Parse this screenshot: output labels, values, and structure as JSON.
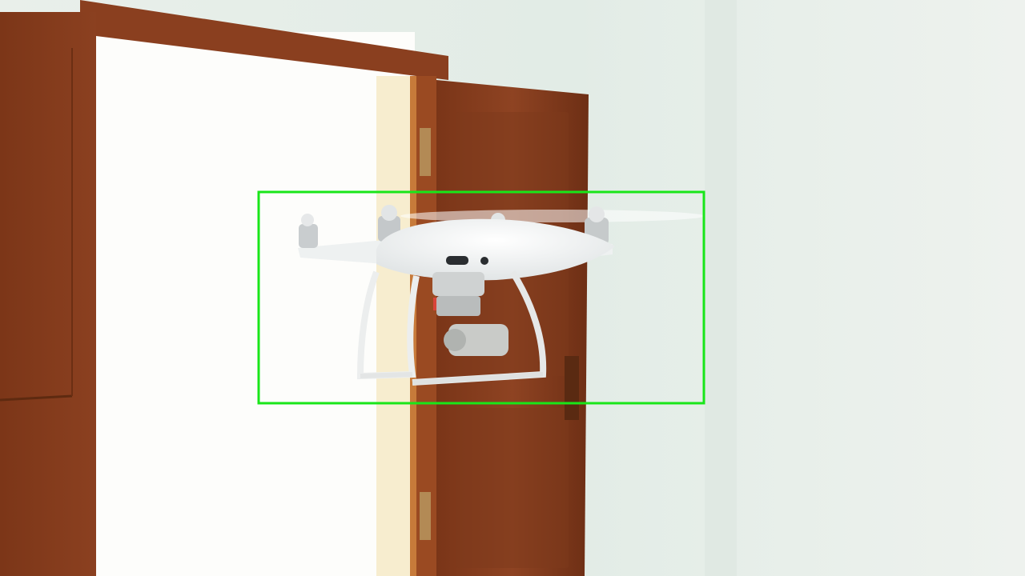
{
  "scene": {
    "subject": "quadcopter-drone",
    "detection_box_color": "#19e619",
    "wall_color": "#e4ede7",
    "door_color": "#8a3f1f",
    "drone_color": "#f2f4f4"
  }
}
